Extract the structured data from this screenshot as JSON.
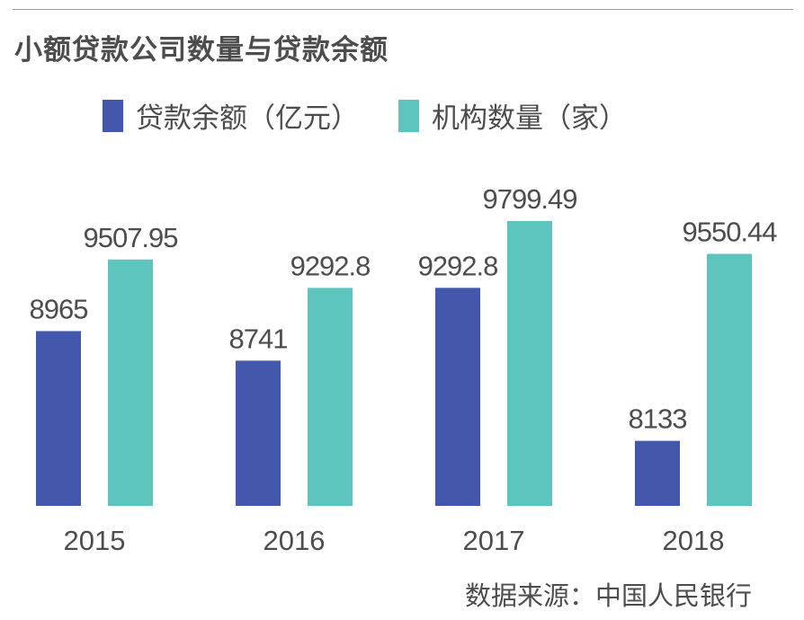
{
  "title": "小额贷款公司数量与贷款余额",
  "legend": {
    "series_a": "贷款余额（亿元）",
    "series_b": "机构数量（家）"
  },
  "source": {
    "label": "数据来源：",
    "value": "中国人民银行"
  },
  "colors": {
    "series_a": "#4358ad",
    "series_b": "#5ec4be",
    "text": "#4d4d4d",
    "rule": "#9a9a9a"
  },
  "chart_data": {
    "type": "bar",
    "title": "小额贷款公司数量与贷款余额",
    "xlabel": "",
    "ylabel": "",
    "categories": [
      "2015",
      "2016",
      "2017",
      "2018"
    ],
    "series": [
      {
        "name": "贷款余额（亿元）",
        "values": [
          8965,
          8741,
          9292.8,
          8133
        ],
        "labels": [
          "8965",
          "8741",
          "9292.8",
          "8133"
        ]
      },
      {
        "name": "机构数量（家）",
        "values": [
          9507.95,
          9292.8,
          9799.49,
          9550.44
        ],
        "labels": [
          "9507.95",
          "9292.8",
          "9799.49",
          "9550.44"
        ]
      }
    ],
    "ylim": [
      7640,
      9990
    ],
    "grid": false,
    "legend_position": "top-left"
  }
}
